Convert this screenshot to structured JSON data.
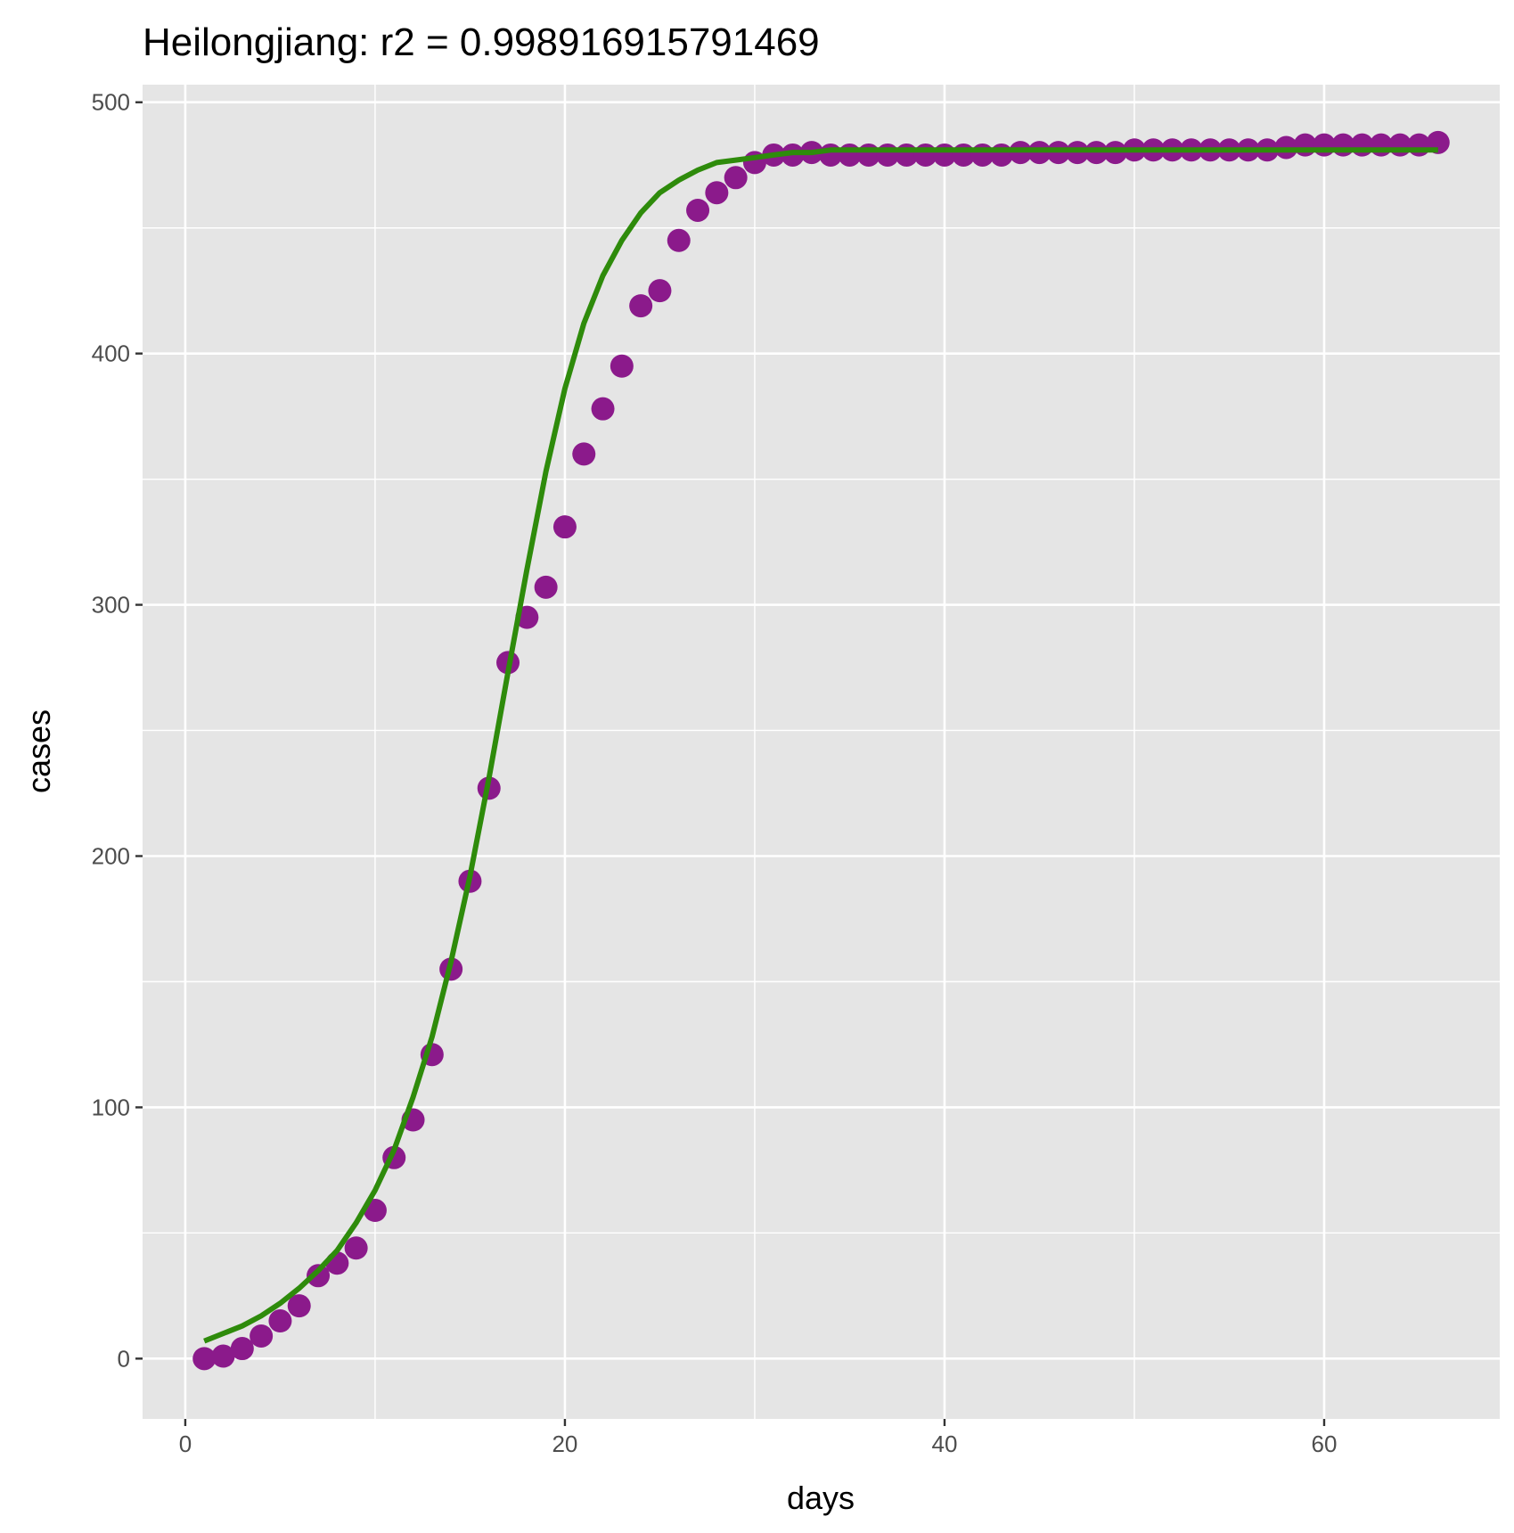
{
  "chart_data": {
    "type": "scatter",
    "title": "Heilongjiang: r2 = 0.998916915791469",
    "xlabel": "days",
    "ylabel": "cases",
    "xlim": [
      -2.25,
      69.25
    ],
    "ylim": [
      -24,
      507
    ],
    "xticks": [
      0,
      20,
      40,
      60
    ],
    "yticks": [
      0,
      100,
      200,
      300,
      400,
      500
    ],
    "grid": true,
    "legend": "none",
    "colors": {
      "panel": "#e5e5e5",
      "grid": "#ffffff",
      "points": "#8b1a8b",
      "fit": "#2e8b0b",
      "ticks": "#333333"
    },
    "series": [
      {
        "kind": "points",
        "x": [
          1,
          2,
          3,
          4,
          5,
          6,
          7,
          8,
          9,
          10,
          11,
          12,
          13,
          14,
          15,
          16,
          17,
          18,
          19,
          20,
          21,
          22,
          23,
          24,
          25,
          26,
          27,
          28,
          29,
          30,
          31,
          32,
          33,
          34,
          35,
          36,
          37,
          38,
          39,
          40,
          41,
          42,
          43,
          44,
          45,
          46,
          47,
          48,
          49,
          50,
          51,
          52,
          53,
          54,
          55,
          56,
          57,
          58,
          59,
          60,
          61,
          62,
          63,
          64,
          65,
          66
        ],
        "y": [
          0,
          1,
          4,
          9,
          15,
          21,
          33,
          38,
          44,
          59,
          80,
          95,
          121,
          155,
          190,
          227,
          277,
          295,
          307,
          331,
          360,
          378,
          395,
          419,
          425,
          445,
          457,
          464,
          470,
          476,
          479,
          479,
          480,
          479,
          479,
          479,
          479,
          479,
          479,
          479,
          479,
          479,
          479,
          480,
          480,
          480,
          480,
          480,
          480,
          481,
          481,
          481,
          481,
          481,
          481,
          481,
          481,
          482,
          483,
          483,
          483,
          483,
          483,
          483,
          483,
          484
        ]
      },
      {
        "kind": "fit",
        "x": [
          1,
          2,
          3,
          4,
          5,
          6,
          7,
          8,
          9,
          10,
          11,
          12,
          13,
          14,
          15,
          16,
          17,
          18,
          19,
          20,
          21,
          22,
          23,
          24,
          25,
          26,
          27,
          28,
          29,
          30,
          31,
          32,
          33,
          34,
          35,
          36,
          37,
          38,
          39,
          40,
          41,
          42,
          43,
          44,
          45,
          46,
          47,
          48,
          49,
          50,
          51,
          52,
          53,
          54,
          55,
          56,
          57,
          58,
          59,
          60,
          61,
          62,
          63,
          64,
          65,
          66
        ],
        "y": [
          7,
          10,
          13,
          17,
          22,
          28,
          35,
          43,
          54,
          67,
          83,
          104,
          128,
          158,
          192,
          231,
          273,
          314,
          353,
          386,
          412,
          431,
          445,
          456,
          464,
          469,
          473,
          476,
          477,
          478,
          479,
          480,
          480,
          481,
          481,
          481,
          481,
          481,
          481,
          481,
          481,
          481,
          481,
          481,
          481,
          481,
          481,
          481,
          481,
          481,
          481,
          481,
          481,
          481,
          481,
          481,
          481,
          481,
          481,
          481,
          481,
          481,
          481,
          481,
          481,
          481
        ]
      }
    ]
  }
}
